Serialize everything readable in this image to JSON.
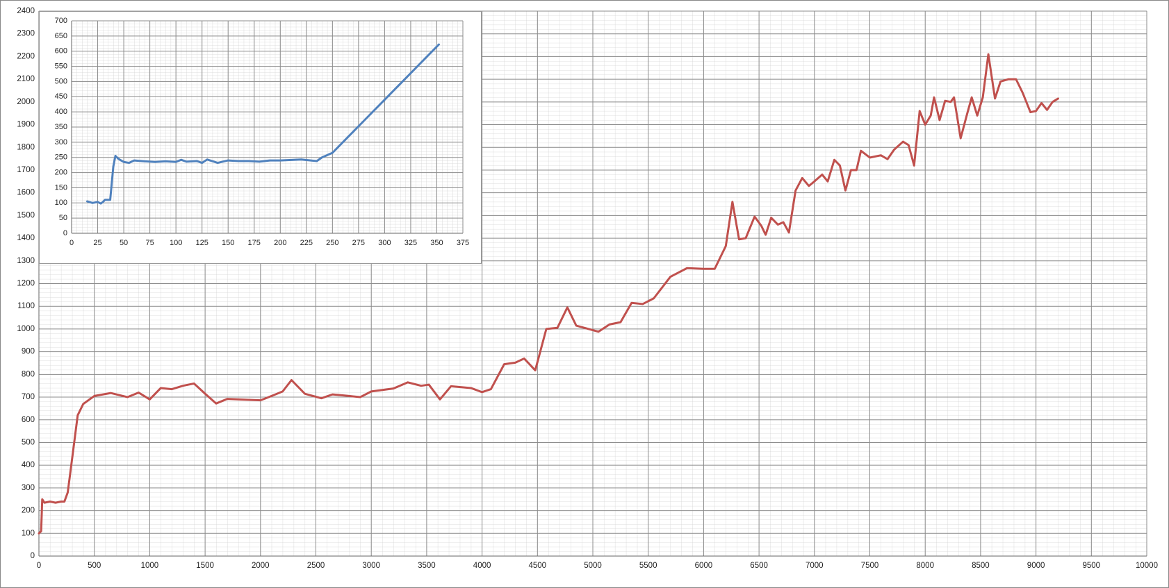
{
  "chart_data": [
    {
      "type": "line",
      "color": "#c0504d",
      "grid": true,
      "xlim": [
        0,
        10000
      ],
      "ylim": [
        0,
        2400
      ],
      "xticks": [
        0,
        500,
        1000,
        1500,
        2000,
        2500,
        3000,
        3500,
        4000,
        4500,
        5000,
        5500,
        6000,
        6500,
        7000,
        7500,
        8000,
        8500,
        9000,
        9500,
        10000
      ],
      "yticks": [
        0,
        100,
        200,
        300,
        400,
        500,
        600,
        700,
        800,
        900,
        1000,
        1100,
        1200,
        1300,
        1400,
        1500,
        1600,
        1700,
        1800,
        1900,
        2000,
        2100,
        2200,
        2300,
        2400
      ],
      "x": [
        0,
        20,
        30,
        50,
        100,
        150,
        200,
        230,
        260,
        300,
        350,
        400,
        500,
        650,
        800,
        900,
        1000,
        1100,
        1200,
        1300,
        1400,
        1500,
        1600,
        1700,
        1900,
        2000,
        2100,
        2200,
        2280,
        2400,
        2550,
        2650,
        2800,
        2900,
        3000,
        3200,
        3330,
        3450,
        3520,
        3620,
        3720,
        3900,
        4000,
        4080,
        4200,
        4300,
        4380,
        4480,
        4580,
        4680,
        4770,
        4850,
        5000,
        5050,
        5150,
        5250,
        5350,
        5450,
        5550,
        5700,
        5850,
        6000,
        6100,
        6200,
        6260,
        6320,
        6380,
        6460,
        6520,
        6560,
        6610,
        6670,
        6720,
        6770,
        6830,
        6890,
        6950,
        7000,
        7070,
        7120,
        7180,
        7230,
        7280,
        7330,
        7380,
        7420,
        7500,
        7600,
        7660,
        7720,
        7800,
        7850,
        7900,
        7950,
        8000,
        8050,
        8080,
        8130,
        8180,
        8230,
        8260,
        8320,
        8380,
        8420,
        8470,
        8520,
        8570,
        8630,
        8680,
        8750,
        8820,
        8880,
        8950,
        9000,
        9050,
        9100,
        9150,
        9200
      ],
      "values": [
        100,
        110,
        250,
        235,
        240,
        235,
        240,
        240,
        280,
        430,
        620,
        670,
        705,
        718,
        700,
        720,
        690,
        740,
        735,
        750,
        760,
        715,
        672,
        692,
        688,
        686,
        705,
        725,
        775,
        715,
        695,
        712,
        705,
        700,
        725,
        738,
        765,
        750,
        755,
        690,
        748,
        740,
        722,
        735,
        845,
        852,
        870,
        818,
        1000,
        1005,
        1095,
        1015,
        995,
        988,
        1020,
        1030,
        1115,
        1110,
        1135,
        1230,
        1268,
        1265,
        1265,
        1365,
        1560,
        1395,
        1400,
        1495,
        1455,
        1415,
        1490,
        1460,
        1470,
        1425,
        1610,
        1665,
        1630,
        1650,
        1680,
        1650,
        1745,
        1720,
        1610,
        1700,
        1700,
        1785,
        1755,
        1765,
        1748,
        1790,
        1825,
        1810,
        1720,
        1960,
        1900,
        1940,
        2020,
        1920,
        2005,
        2000,
        2020,
        1840,
        1950,
        2020,
        1940,
        2020,
        2210,
        2015,
        2090,
        2100,
        2100,
        2040,
        1955,
        1960,
        1995,
        1965,
        2000,
        2015
      ]
    },
    {
      "type": "line",
      "color": "#4f81bd",
      "grid": true,
      "xlim": [
        0,
        375
      ],
      "ylim": [
        0,
        700
      ],
      "xticks": [
        0,
        25,
        50,
        75,
        100,
        125,
        150,
        175,
        200,
        225,
        250,
        275,
        300,
        325,
        350,
        375
      ],
      "yticks": [
        0,
        50,
        100,
        150,
        200,
        250,
        300,
        350,
        400,
        450,
        500,
        550,
        600,
        650,
        700
      ],
      "x": [
        15,
        20,
        25,
        28,
        30,
        32,
        35,
        37,
        40,
        42,
        45,
        50,
        55,
        60,
        70,
        80,
        90,
        100,
        105,
        110,
        120,
        125,
        130,
        140,
        150,
        160,
        170,
        180,
        190,
        200,
        220,
        235,
        240,
        250,
        260,
        270,
        280,
        290,
        300,
        310,
        320,
        330,
        340,
        352
      ],
      "values": [
        105,
        100,
        103,
        98,
        103,
        110,
        110,
        110,
        220,
        255,
        245,
        235,
        232,
        240,
        237,
        235,
        237,
        235,
        242,
        236,
        238,
        232,
        243,
        232,
        240,
        238,
        238,
        236,
        240,
        240,
        243,
        238,
        250,
        265,
        300,
        335,
        370,
        405,
        440,
        475,
        510,
        545,
        580,
        622
      ]
    }
  ]
}
